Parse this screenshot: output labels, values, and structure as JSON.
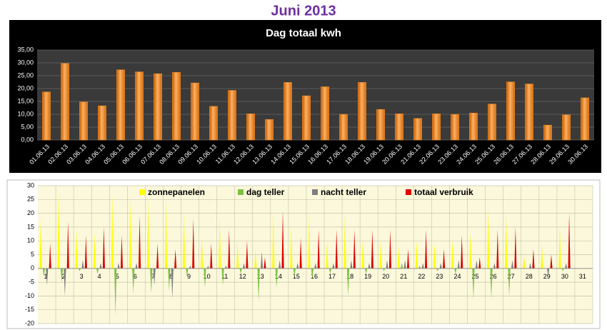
{
  "page_title": "Juni 2013",
  "chart_data": [
    {
      "type": "bar",
      "title": "Dag totaal kwh",
      "categories": [
        "01.06.13",
        "02.06.13",
        "03.06.13",
        "04.06.13",
        "05.06.13",
        "06.06.13",
        "07.06.13",
        "08.06.13",
        "09.06.13",
        "10.06.13",
        "11.06.13",
        "12.06.13",
        "13.06.13",
        "14.06.13",
        "15.06.13",
        "16.06.13",
        "17.06.13",
        "18.06.13",
        "19.06.13",
        "20.06.13",
        "21.06.13",
        "22.06.13",
        "23.06.13",
        "24.06.13",
        "25.06.13",
        "26.06.13",
        "27.06.13",
        "28.06.13",
        "29.06.13",
        "30.06.13"
      ],
      "values": [
        18.7,
        29.8,
        14.8,
        13.3,
        27.3,
        26.5,
        25.8,
        26.3,
        22.2,
        13.1,
        19.3,
        10.2,
        8.0,
        22.4,
        17.2,
        20.7,
        10.0,
        22.4,
        11.9,
        10.2,
        8.4,
        10.2,
        10.0,
        10.5,
        14.0,
        22.6,
        21.8,
        5.8,
        9.8,
        16.4
      ],
      "color": "#f28c1e",
      "ylim": [
        0,
        35
      ],
      "yticks": [
        {
          "value": 0,
          "label": "0,00"
        },
        {
          "value": 5,
          "label": "5,00"
        },
        {
          "value": 10,
          "label": "10,00"
        },
        {
          "value": 15,
          "label": "15,00"
        },
        {
          "value": 20,
          "label": "20,00"
        },
        {
          "value": 25,
          "label": "25,00"
        },
        {
          "value": 30,
          "label": "30,00"
        },
        {
          "value": 35,
          "label": "35,00"
        }
      ],
      "grid": true
    },
    {
      "type": "spike",
      "categories": [
        "1",
        "2",
        "3",
        "4",
        "5",
        "6",
        "7",
        "8",
        "9",
        "10",
        "11",
        "12",
        "13",
        "14",
        "15",
        "16",
        "17",
        "18",
        "19",
        "20",
        "21",
        "22",
        "23",
        "24",
        "25",
        "26",
        "27",
        "28",
        "29",
        "30",
        "31"
      ],
      "series": [
        {
          "name": "zonnepanelen",
          "color": "#ffff00",
          "values": [
            18,
            28,
            14,
            13,
            27,
            25,
            25,
            25,
            21,
            12,
            19,
            10,
            7,
            21,
            16,
            20,
            10,
            21,
            11,
            10,
            8,
            10,
            9,
            10,
            13,
            22,
            20,
            5,
            9,
            16,
            null
          ]
        },
        {
          "name": "dag teller",
          "color": "#7dc242",
          "values": [
            -3,
            -5,
            -1,
            -2,
            -17,
            -9,
            -9,
            -8,
            -3,
            -7,
            -6,
            -2,
            -12,
            -7,
            -3,
            -4,
            -2,
            -10,
            -2,
            -1,
            2,
            1,
            -1,
            -2,
            -11,
            -11,
            -10,
            0,
            0,
            -1,
            null
          ]
        },
        {
          "name": "nacht teller",
          "color": "#7f7f7f",
          "values": [
            -6,
            -10,
            3,
            2,
            2,
            2,
            -6,
            -11,
            1,
            1,
            1,
            2,
            6,
            3,
            2,
            2,
            2,
            3,
            2,
            3,
            3,
            2,
            2,
            3,
            3,
            2,
            3,
            2,
            -3,
            2,
            null
          ]
        },
        {
          "name": "totaal verbruik",
          "color": "#e00000",
          "values": [
            9,
            17,
            12,
            15,
            12,
            19,
            9,
            7,
            18,
            9,
            14,
            10,
            4,
            21,
            11,
            14,
            14,
            14,
            14,
            14,
            7,
            14,
            7,
            12,
            4,
            14,
            15,
            7,
            5,
            20,
            null
          ]
        }
      ],
      "ylim": [
        -20,
        30
      ],
      "yticks": [
        -20,
        -15,
        -10,
        -5,
        0,
        5,
        10,
        15,
        20,
        25,
        30
      ],
      "grid": true,
      "legend": "top"
    }
  ]
}
